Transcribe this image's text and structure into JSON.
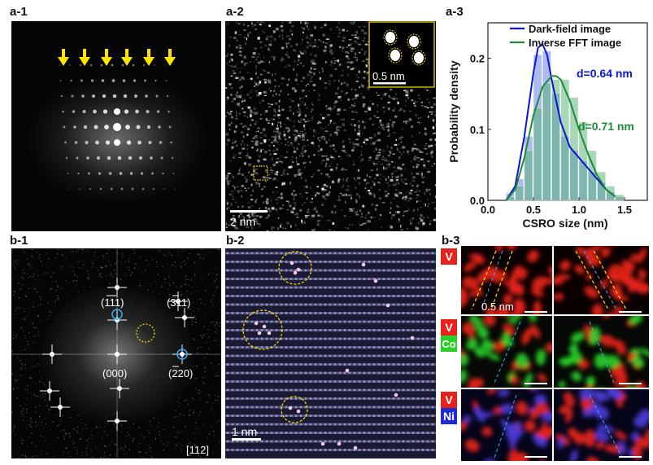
{
  "panels": {
    "a1": {
      "label": "a-1"
    },
    "a2": {
      "label": "a-2",
      "scale": "2 nm",
      "inset_scale": "0.5 nm"
    },
    "a3": {
      "label": "a-3"
    },
    "b1": {
      "label": "b-1",
      "spots": {
        "s111": "(111)",
        "s311": "(311)",
        "s000": "(000)",
        "s220": "(220)"
      },
      "zone": "[112]"
    },
    "b2": {
      "label": "b-2",
      "scale": "1 nm"
    },
    "b3": {
      "label": "b-3",
      "scale": "0.5 nm",
      "maps": [
        {
          "elements": [
            "V"
          ]
        },
        {
          "elements": [
            "V",
            "Co"
          ]
        },
        {
          "elements": [
            "V",
            "Ni"
          ]
        }
      ]
    }
  },
  "colors": {
    "yellow": "#ffe400",
    "blue_line": "#0a14d8",
    "green_line": "#1f8a3a",
    "cyan_mark": "#2ab4ff",
    "V": "#e8211b",
    "Co": "#28d028",
    "Ni": "#1c2bd6"
  },
  "chart_data": {
    "type": "histogram",
    "xlabel": "CSRO size (nm)",
    "ylabel": "Probability density",
    "xlim": [
      0,
      1.75
    ],
    "ylim": [
      0,
      0.25
    ],
    "xticks": [
      0.0,
      0.5,
      1.0,
      1.5
    ],
    "yticks": [
      0.0,
      0.1,
      0.2
    ],
    "legend": "top-right",
    "series": [
      {
        "name": "Dark-field image",
        "color": "#0a14d8",
        "bins": [
          0.2,
          0.3,
          0.4,
          0.5,
          0.6,
          0.7,
          0.8,
          0.9,
          1.0,
          1.1,
          1.2,
          1.3,
          1.4
        ],
        "values": [
          0.01,
          0.03,
          0.09,
          0.205,
          0.21,
          0.15,
          0.09,
          0.07,
          0.055,
          0.04,
          0.025,
          0.012,
          0.005
        ],
        "curve_x": [
          0.2,
          0.3,
          0.4,
          0.5,
          0.55,
          0.6,
          0.65,
          0.7,
          0.8,
          0.9,
          1.0,
          1.1,
          1.2,
          1.3,
          1.4
        ],
        "curve_y": [
          0.0,
          0.02,
          0.09,
          0.18,
          0.215,
          0.22,
          0.205,
          0.17,
          0.11,
          0.075,
          0.06,
          0.045,
          0.03,
          0.015,
          0.005
        ],
        "annotation": "d=0.64 nm"
      },
      {
        "name": "Inverse FFT image",
        "color": "#1f8a3a",
        "bins": [
          0.2,
          0.3,
          0.4,
          0.5,
          0.6,
          0.7,
          0.8,
          0.9,
          1.0,
          1.1,
          1.2,
          1.3,
          1.4
        ],
        "values": [
          0.005,
          0.02,
          0.07,
          0.13,
          0.165,
          0.17,
          0.17,
          0.145,
          0.11,
          0.07,
          0.04,
          0.02,
          0.008
        ],
        "curve_x": [
          0.2,
          0.3,
          0.4,
          0.5,
          0.6,
          0.7,
          0.75,
          0.8,
          0.9,
          1.0,
          1.1,
          1.2,
          1.3,
          1.4
        ],
        "curve_y": [
          0.0,
          0.015,
          0.06,
          0.12,
          0.16,
          0.175,
          0.175,
          0.17,
          0.14,
          0.1,
          0.065,
          0.035,
          0.015,
          0.005
        ],
        "annotation": "d=0.71 nm"
      }
    ]
  }
}
